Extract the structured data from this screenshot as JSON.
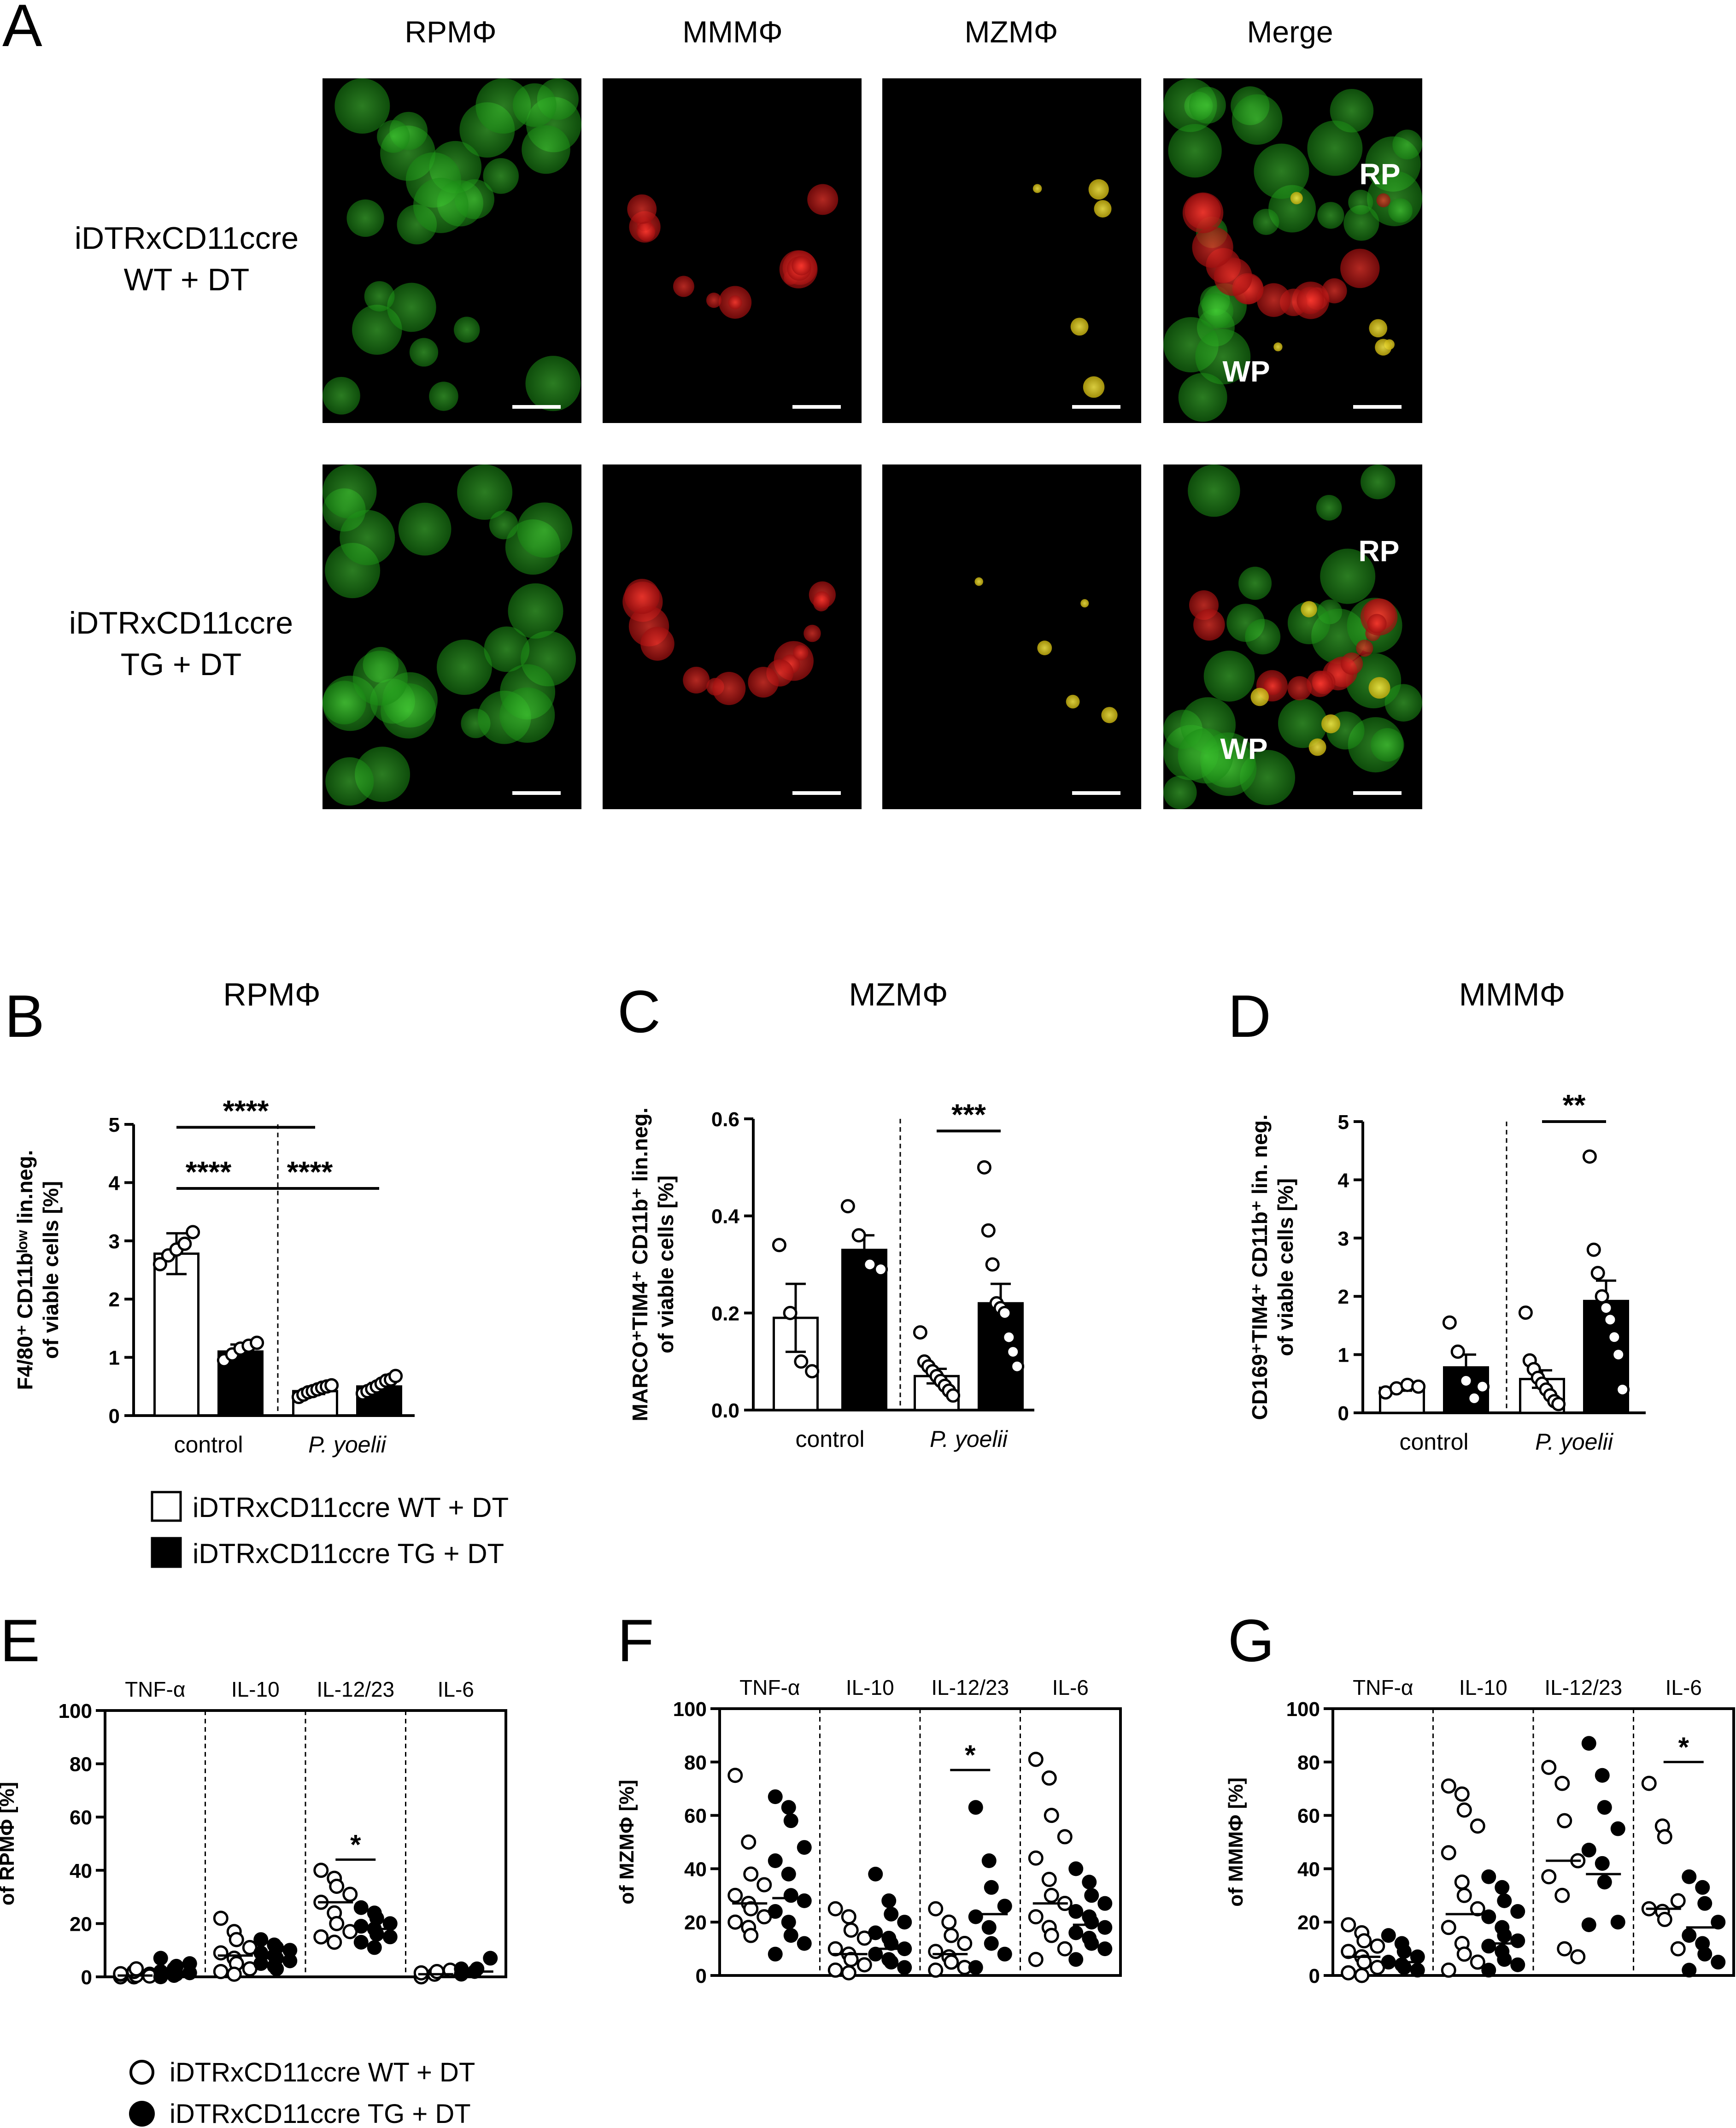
{
  "panelA": {
    "letter": "A",
    "columns": [
      "RPMΦ",
      "MMMΦ",
      "MZMΦ",
      "Merge"
    ],
    "rows": [
      {
        "label_lines": [
          "iDTRxCD11ccre",
          "WT + DT"
        ],
        "merge_labels": [
          "RP",
          "WP"
        ]
      },
      {
        "label_lines": [
          "iDTRxCD11ccre",
          "TG + DT"
        ],
        "merge_labels": [
          "RP",
          "WP"
        ]
      }
    ],
    "colors": {
      "green": "#22c81e",
      "red": "#e0141e",
      "yellow": "#e6d21e",
      "background": "#000000"
    }
  },
  "legend1": {
    "items": [
      "iDTRxCD11ccre WT + DT",
      "iDTRxCD11ccre TG + DT"
    ]
  },
  "legend2": {
    "items": [
      "iDTRxCD11ccre WT + DT",
      "iDTRxCD11ccre TG + DT"
    ]
  },
  "chart_data": [
    {
      "panel": "B",
      "type": "bar",
      "title": "RPMΦ",
      "ylabel_lines": [
        "F4/80⁺ CD11bˡᵒʷ lin.neg.",
        "of viable cells [%]"
      ],
      "ylim": [
        0,
        5
      ],
      "yticks": [
        "0",
        "1",
        "2",
        "3",
        "4",
        "5"
      ],
      "groups": [
        "control",
        "P. yoelii"
      ],
      "bars": [
        {
          "group": "control",
          "series": "WT",
          "mean": 2.78,
          "err": 0.35,
          "points": [
            2.6,
            2.75,
            2.85,
            2.95,
            3.15
          ]
        },
        {
          "group": "control",
          "series": "TG",
          "mean": 1.1,
          "err": 0.12,
          "points": [
            0.95,
            1.05,
            1.15,
            1.2,
            1.25
          ]
        },
        {
          "group": "P. yoelii",
          "series": "WT",
          "mean": 0.42,
          "err": 0.05,
          "points": [
            0.32,
            0.36,
            0.4,
            0.42,
            0.45,
            0.48,
            0.5,
            0.52
          ]
        },
        {
          "group": "P. yoelii",
          "series": "TG",
          "mean": 0.5,
          "err": 0.06,
          "points": [
            0.38,
            0.42,
            0.46,
            0.5,
            0.55,
            0.6,
            0.62,
            0.68
          ]
        }
      ],
      "significance": [
        {
          "from": 0,
          "to": 2,
          "level": 4.95,
          "label": "****"
        },
        {
          "from": 0,
          "to": 1,
          "level": 3.9,
          "label": "****"
        },
        {
          "from": 1,
          "to": 3,
          "level": 3.9,
          "label": "****"
        }
      ]
    },
    {
      "panel": "C",
      "type": "bar",
      "title": "MZMΦ",
      "ylabel_lines": [
        "MARCO⁺TIM4⁺ CD11b⁺ lin.neg.",
        "of viable cells [%]"
      ],
      "ylim": [
        0,
        0.6
      ],
      "yticks": [
        "0.0",
        "0.2",
        "0.4",
        "0.6"
      ],
      "groups": [
        "control",
        "P. yoelii"
      ],
      "bars": [
        {
          "group": "control",
          "series": "WT",
          "mean": 0.19,
          "err": 0.07,
          "points": [
            0.34,
            0.2,
            0.1,
            0.08
          ]
        },
        {
          "group": "control",
          "series": "TG",
          "mean": 0.33,
          "err": 0.03,
          "points": [
            0.42,
            0.36,
            0.3,
            0.29
          ]
        },
        {
          "group": "P. yoelii",
          "series": "WT",
          "mean": 0.07,
          "err": 0.015,
          "points": [
            0.16,
            0.1,
            0.09,
            0.08,
            0.07,
            0.06,
            0.05,
            0.04,
            0.03
          ]
        },
        {
          "group": "P. yoelii",
          "series": "TG",
          "mean": 0.22,
          "err": 0.04,
          "points": [
            0.5,
            0.37,
            0.3,
            0.22,
            0.21,
            0.2,
            0.15,
            0.12,
            0.09
          ]
        }
      ],
      "significance": [
        {
          "from": 2,
          "to": 3,
          "level": 0.575,
          "label": "***"
        }
      ]
    },
    {
      "panel": "D",
      "type": "bar",
      "title": "MMMΦ",
      "ylabel_lines": [
        "CD169⁺TIM4⁺ CD11b⁺ lin. neg.",
        "of viable cells [%]"
      ],
      "ylim": [
        0,
        5
      ],
      "yticks": [
        "0",
        "1",
        "2",
        "3",
        "4",
        "5"
      ],
      "groups": [
        "control",
        "P. yoelii"
      ],
      "bars": [
        {
          "group": "control",
          "series": "WT",
          "mean": 0.43,
          "err": 0.05,
          "points": [
            0.35,
            0.42,
            0.48,
            0.45
          ]
        },
        {
          "group": "control",
          "series": "TG",
          "mean": 0.78,
          "err": 0.22,
          "points": [
            1.55,
            1.05,
            0.55,
            0.25,
            0.45
          ]
        },
        {
          "group": "P. yoelii",
          "series": "WT",
          "mean": 0.58,
          "err": 0.15,
          "points": [
            1.72,
            0.9,
            0.75,
            0.6,
            0.5,
            0.4,
            0.3,
            0.2,
            0.15
          ]
        },
        {
          "group": "P. yoelii",
          "series": "TG",
          "mean": 1.92,
          "err": 0.35,
          "points": [
            4.4,
            2.8,
            2.4,
            2.0,
            1.8,
            1.6,
            1.3,
            1.0,
            0.4
          ]
        }
      ],
      "significance": [
        {
          "from": 2,
          "to": 3,
          "level": 5.0,
          "label": "**"
        }
      ]
    },
    {
      "panel": "E",
      "type": "scatter",
      "ylabel": "of RPMΦ [%]",
      "ylim": [
        0,
        100
      ],
      "yticks": [
        "0",
        "20",
        "40",
        "60",
        "80",
        "100"
      ],
      "cytokines": [
        "TNF-α",
        "IL-10",
        "IL-12/23",
        "IL-6"
      ],
      "series": [
        {
          "cytokine": "TNF-α",
          "group": "WT",
          "median": 0.5,
          "values": [
            0,
            0,
            0.5,
            1,
            1,
            2,
            3,
            0.3,
            1.2
          ]
        },
        {
          "cytokine": "TNF-α",
          "group": "TG",
          "median": 1,
          "values": [
            0,
            0.5,
            1,
            1.5,
            2,
            3,
            4,
            5,
            7
          ]
        },
        {
          "cytokine": "IL-10",
          "group": "WT",
          "median": 8,
          "values": [
            22,
            17,
            14,
            11,
            9,
            7,
            5,
            3,
            2,
            1
          ]
        },
        {
          "cytokine": "IL-10",
          "group": "TG",
          "median": 7,
          "values": [
            14,
            12,
            11,
            10,
            9,
            8,
            7,
            6,
            5,
            4,
            3
          ]
        },
        {
          "cytokine": "IL-12/23",
          "group": "WT",
          "median": 28,
          "values": [
            40,
            37,
            34,
            31,
            28,
            24,
            20,
            17,
            15,
            13
          ]
        },
        {
          "cytokine": "IL-12/23",
          "group": "TG",
          "median": 18,
          "values": [
            26,
            24,
            22,
            20,
            19,
            18,
            16,
            15,
            13,
            11
          ]
        },
        {
          "cytokine": "IL-6",
          "group": "WT",
          "median": 1,
          "values": [
            0,
            1,
            2,
            2.5,
            1.5
          ]
        },
        {
          "cytokine": "IL-6",
          "group": "TG",
          "median": 2,
          "values": [
            1,
            2,
            3,
            7,
            3
          ]
        }
      ],
      "significance": [
        {
          "cytokine": "IL-12/23",
          "level": 44,
          "label": "*"
        }
      ]
    },
    {
      "panel": "F",
      "type": "scatter",
      "ylabel": "of MZMΦ [%]",
      "ylim": [
        0,
        100
      ],
      "yticks": [
        "0",
        "20",
        "40",
        "60",
        "80",
        "100"
      ],
      "cytokines": [
        "TNF-α",
        "IL-10",
        "IL-12/23",
        "IL-6"
      ],
      "series": [
        {
          "cytokine": "TNF-α",
          "group": "WT",
          "median": 27,
          "values": [
            75,
            50,
            38,
            34,
            30,
            27,
            25,
            22,
            20,
            18,
            15
          ]
        },
        {
          "cytokine": "TNF-α",
          "group": "TG",
          "median": 29,
          "values": [
            67,
            63,
            58,
            48,
            43,
            38,
            30,
            28,
            24,
            20,
            15,
            12,
            8
          ]
        },
        {
          "cytokine": "IL-10",
          "group": "WT",
          "median": 8,
          "values": [
            25,
            22,
            17,
            14,
            10,
            8,
            6,
            4,
            2,
            1
          ]
        },
        {
          "cytokine": "IL-10",
          "group": "TG",
          "median": 10,
          "values": [
            38,
            28,
            23,
            20,
            16,
            14,
            12,
            10,
            8,
            6,
            5,
            3
          ]
        },
        {
          "cytokine": "IL-12/23",
          "group": "WT",
          "median": 8,
          "values": [
            25,
            20,
            15,
            12,
            9,
            7,
            5,
            3,
            2
          ]
        },
        {
          "cytokine": "IL-12/23",
          "group": "TG",
          "median": 23,
          "values": [
            63,
            43,
            33,
            26,
            22,
            18,
            12,
            8,
            3
          ]
        },
        {
          "cytokine": "IL-6",
          "group": "WT",
          "median": 27,
          "values": [
            81,
            74,
            60,
            52,
            44,
            36,
            30,
            27,
            22,
            18,
            15,
            10,
            6
          ]
        },
        {
          "cytokine": "IL-6",
          "group": "TG",
          "median": 19,
          "values": [
            40,
            35,
            30,
            27,
            24,
            22,
            20,
            18,
            16,
            14,
            12,
            10,
            6
          ]
        }
      ],
      "significance": [
        {
          "cytokine": "IL-12/23",
          "level": 77,
          "label": "*"
        }
      ]
    },
    {
      "panel": "G",
      "type": "scatter",
      "ylabel": "of MMMΦ [%]",
      "ylim": [
        0,
        100
      ],
      "yticks": [
        "0",
        "20",
        "40",
        "60",
        "80",
        "100"
      ],
      "cytokines": [
        "TNF-α",
        "IL-10",
        "IL-12/23",
        "IL-6"
      ],
      "series": [
        {
          "cytokine": "TNF-α",
          "group": "WT",
          "median": 7,
          "values": [
            19,
            16,
            13,
            11,
            9,
            7,
            5,
            3,
            1,
            0
          ]
        },
        {
          "cytokine": "TNF-α",
          "group": "TG",
          "median": 5,
          "values": [
            15,
            12,
            9,
            7,
            5,
            4,
            3,
            2
          ]
        },
        {
          "cytokine": "IL-10",
          "group": "WT",
          "median": 23,
          "values": [
            71,
            68,
            62,
            56,
            46,
            35,
            30,
            25,
            18,
            12,
            8,
            5,
            2
          ]
        },
        {
          "cytokine": "IL-10",
          "group": "TG",
          "median": 12,
          "values": [
            37,
            33,
            28,
            24,
            22,
            18,
            15,
            13,
            11,
            9,
            6,
            4,
            2
          ]
        },
        {
          "cytokine": "IL-12/23",
          "group": "WT",
          "median": 43,
          "values": [
            78,
            72,
            58,
            43,
            37,
            30,
            10,
            7
          ]
        },
        {
          "cytokine": "IL-12/23",
          "group": "TG",
          "median": 38,
          "values": [
            87,
            75,
            63,
            55,
            47,
            42,
            35,
            20,
            19
          ]
        },
        {
          "cytokine": "IL-6",
          "group": "WT",
          "median": 25,
          "values": [
            72,
            56,
            52,
            28,
            25,
            24,
            21,
            10
          ]
        },
        {
          "cytokine": "IL-6",
          "group": "TG",
          "median": 18,
          "values": [
            37,
            33,
            27,
            20,
            15,
            12,
            8,
            5,
            2
          ]
        }
      ],
      "significance": [
        {
          "cytokine": "IL-6",
          "level": 80,
          "label": "*"
        }
      ]
    }
  ]
}
